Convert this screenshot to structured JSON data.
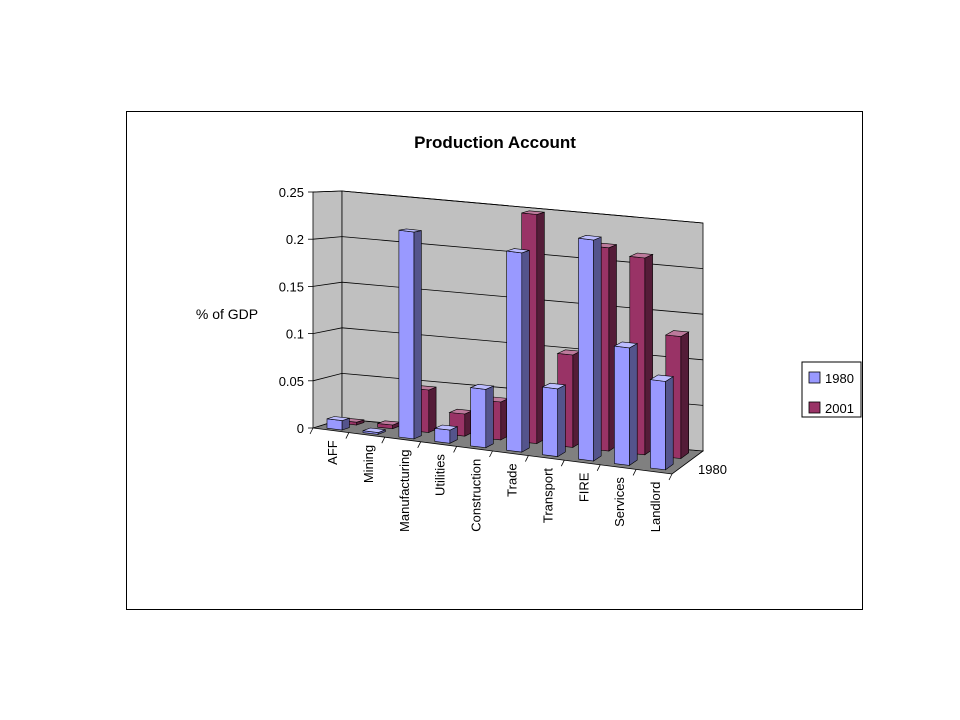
{
  "chart_data": {
    "type": "bar",
    "title": "Production Account",
    "ylabel": "% of GDP",
    "xlabel": "",
    "depth_label": "1980",
    "ylim": [
      0,
      0.25
    ],
    "yticks": [
      "0",
      "0.05",
      "0.1",
      "0.15",
      "0.2",
      "0.25"
    ],
    "grid": true,
    "legend_position": "right",
    "categories": [
      "AFF",
      "Mining",
      "Manufacturing",
      "Utilities",
      "Construction",
      "Trade",
      "Transport",
      "FIRE",
      "Services",
      "Landlord"
    ],
    "series": [
      {
        "name": "1980",
        "color": "#9999ff",
        "values": [
          0.01,
          0.002,
          0.22,
          0.014,
          0.062,
          0.212,
          0.072,
          0.235,
          0.125,
          0.094
        ]
      },
      {
        "name": "2001",
        "color": "#993366",
        "values": [
          0.003,
          0.004,
          0.046,
          0.024,
          0.041,
          0.248,
          0.1,
          0.22,
          0.213,
          0.132
        ]
      }
    ]
  }
}
